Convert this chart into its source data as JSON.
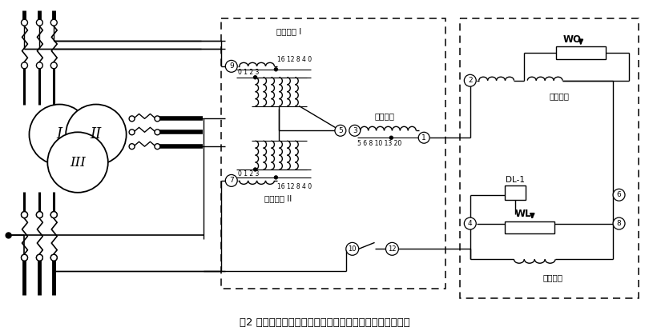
{
  "title": "图2 继电器内部接线及保护三绕组电力变压器的原理接线图",
  "ping_heng_I": "平衡绕组 I",
  "ping_heng_II": "平衡绕组 II",
  "gong_zuo_label": "工作绕组",
  "duan_lu_label": "短路绕组",
  "er_ci_label": "二次绕组",
  "DL1_label": "DL-1",
  "WO_label": "WO",
  "WL_label": "WL",
  "tap_top": "16 12 8 4 0",
  "tap_bot": "0 1 2 3",
  "work_tap": "5 6 8 10 13 20"
}
